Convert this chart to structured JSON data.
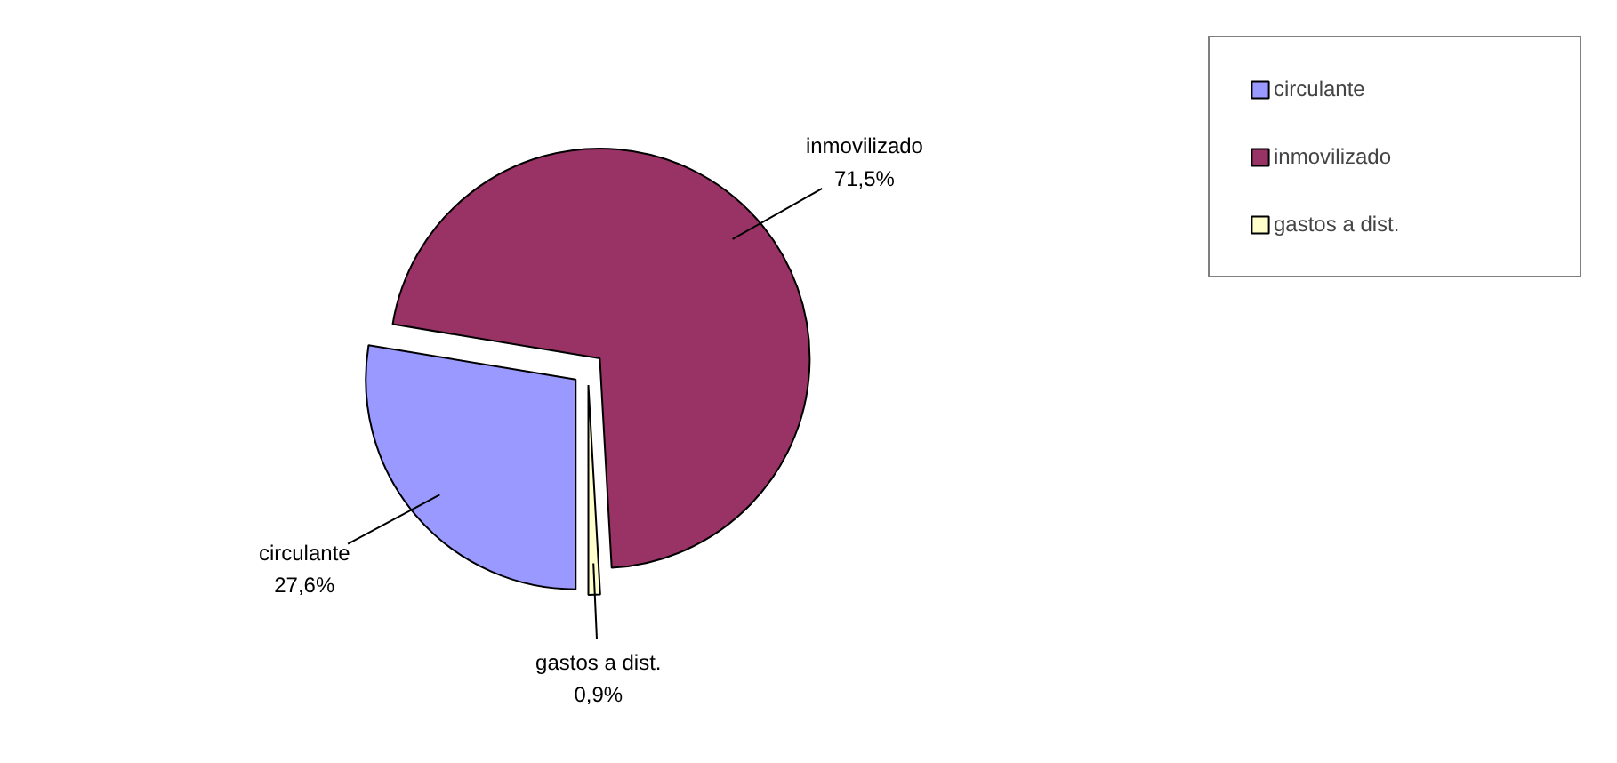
{
  "chart_data": {
    "type": "pie",
    "categories": [
      "circulante",
      "inmovilizado",
      "gastos a dist."
    ],
    "values": [
      27.6,
      71.5,
      0.9
    ],
    "colors": [
      "#9999ff",
      "#993366",
      "#ffffcc"
    ],
    "value_labels": [
      "27,6%",
      "71,5%",
      "0,9%"
    ],
    "legend": "top right"
  }
}
